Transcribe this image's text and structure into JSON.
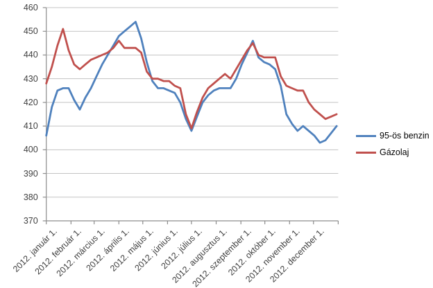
{
  "chart_data": {
    "type": "line",
    "title": "",
    "x_tick_labels": [
      "2012. január 1.",
      "2012. február 1.",
      "2012. március 1.",
      "2012. április 1.",
      "2012. május 1.",
      "2012. június 1.",
      "2012. július 1.",
      "2012. augusztus 1.",
      "2012. szeptember 1.",
      "2012. október 1.",
      "2012. november 1.",
      "2012. december 1."
    ],
    "x_interval": "weekly",
    "ylim": [
      370,
      460
    ],
    "y_ticks": [
      370,
      380,
      390,
      400,
      410,
      420,
      430,
      440,
      450,
      460
    ],
    "grid": "horizontal",
    "legend_position": "right",
    "series": [
      {
        "name": "95-ös benzin",
        "color": "#4F81BD",
        "values": [
          406,
          418,
          425,
          426,
          426,
          421,
          417,
          422,
          426,
          431,
          436,
          440,
          444,
          448,
          450,
          452,
          454,
          447,
          437,
          429,
          426,
          426,
          425,
          424,
          420,
          413,
          408,
          414,
          420,
          423,
          425,
          426,
          426,
          426,
          430,
          436,
          441,
          446,
          439,
          437,
          436,
          434,
          427,
          415,
          411,
          408,
          410,
          408,
          406,
          403,
          404,
          407,
          410
        ]
      },
      {
        "name": "Gázolaj",
        "color": "#C0504D",
        "values": [
          428,
          435,
          444,
          451,
          442,
          436,
          434,
          436,
          438,
          439,
          440,
          441,
          443,
          446,
          443,
          443,
          443,
          441,
          433,
          430,
          430,
          429,
          429,
          427,
          426,
          415,
          409,
          416,
          422,
          426,
          428,
          430,
          432,
          430,
          434,
          438,
          442,
          445,
          440,
          439,
          439,
          439,
          431,
          427,
          426,
          425,
          425,
          420,
          417,
          415,
          413,
          414,
          415
        ]
      }
    ]
  }
}
